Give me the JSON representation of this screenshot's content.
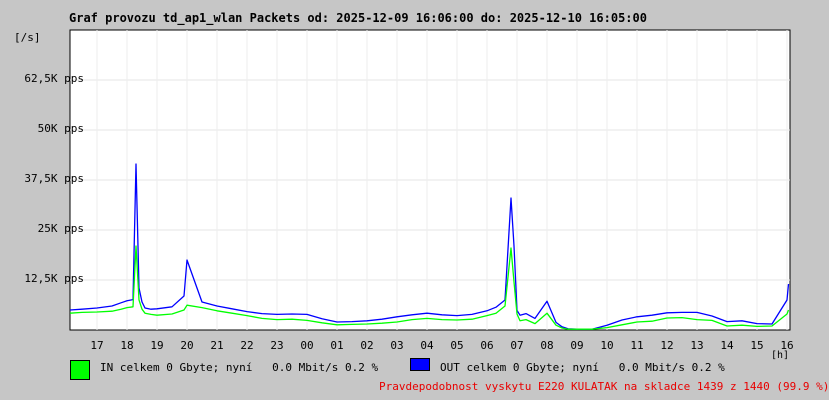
{
  "chart_data": {
    "type": "line",
    "title": "Graf provozu td_ap1_wlan Packets od: 2025-12-09 16:06:00 do: 2025-12-10 16:05:00",
    "ylabel": "[/s]",
    "xlabel": "[h]",
    "ylim": [
      0,
      75000
    ],
    "y_ticks": [
      12500,
      25000,
      37500,
      50000,
      62500
    ],
    "y_tick_labels": [
      "12,5K pps",
      "25K pps",
      "37,5K pps",
      "50K pps",
      "62,5K pps"
    ],
    "x_tick_labels": [
      "17",
      "18",
      "19",
      "20",
      "21",
      "22",
      "23",
      "00",
      "01",
      "02",
      "03",
      "04",
      "05",
      "06",
      "07",
      "08",
      "09",
      "10",
      "11",
      "12",
      "13",
      "14",
      "15",
      "16"
    ],
    "x_hours": [
      16.1,
      16.5,
      17,
      17.5,
      17.8,
      18,
      18.2,
      18.3,
      18.4,
      18.5,
      18.6,
      18.8,
      19,
      19.5,
      19.9,
      20,
      20.5,
      21,
      21.5,
      22,
      22.5,
      23,
      23.5,
      24,
      24.5,
      25,
      25.5,
      26,
      26.5,
      27,
      27.5,
      28,
      28.5,
      29,
      29.5,
      30,
      30.3,
      30.6,
      30.8,
      30.9,
      31,
      31.1,
      31.3,
      31.6,
      32,
      32.3,
      32.5,
      32.7,
      33,
      33.5,
      34,
      34.5,
      35,
      35.5,
      36,
      36.5,
      37,
      37.5,
      38,
      38.5,
      39,
      39.5,
      40,
      40.05
    ],
    "series": [
      {
        "name": "IN",
        "color": "#00ff00",
        "values": [
          4200,
          4400,
          4500,
          4700,
          5200,
          5600,
          5800,
          21000,
          7500,
          5200,
          4200,
          3900,
          3700,
          4000,
          5000,
          6200,
          5600,
          4800,
          4200,
          3600,
          2900,
          2600,
          2700,
          2400,
          1800,
          1300,
          1400,
          1500,
          1700,
          2000,
          2600,
          2900,
          2600,
          2500,
          2700,
          3600,
          4200,
          6000,
          20500,
          12000,
          4000,
          2300,
          2600,
          1600,
          4200,
          1200,
          500,
          200,
          200,
          200,
          600,
          1300,
          2000,
          2200,
          3000,
          3100,
          2600,
          2400,
          1000,
          1200,
          900,
          1000,
          4000,
          5000
        ]
      },
      {
        "name": "OUT",
        "color": "#0000ff",
        "values": [
          5000,
          5200,
          5500,
          6000,
          6800,
          7300,
          7600,
          41500,
          10500,
          7000,
          5500,
          5200,
          5300,
          5800,
          8500,
          17500,
          7000,
          6000,
          5300,
          4600,
          4100,
          3900,
          4000,
          3900,
          2800,
          2000,
          2100,
          2300,
          2700,
          3300,
          3800,
          4200,
          3800,
          3600,
          3900,
          4800,
          5700,
          7500,
          33000,
          21000,
          4900,
          3700,
          4100,
          2900,
          7200,
          1900,
          800,
          300,
          200,
          200,
          1200,
          2500,
          3300,
          3700,
          4300,
          4400,
          4400,
          3500,
          2100,
          2300,
          1600,
          1500,
          7500,
          11500
        ]
      }
    ]
  },
  "legend": [
    {
      "label": "IN celkem 0 Gbyte; nyní   0.0 Mbit/s 0.2 %",
      "color": "#00ff00"
    },
    {
      "label": "OUT celkem 0 Gbyte; nyní   0.0 Mbit/s 0.2 %",
      "color": "#0000ff"
    }
  ],
  "probability_text": "Pravdepodobnost vyskytu E220 KULATAK na skladce 1439 z 1440 (99.9 %)"
}
